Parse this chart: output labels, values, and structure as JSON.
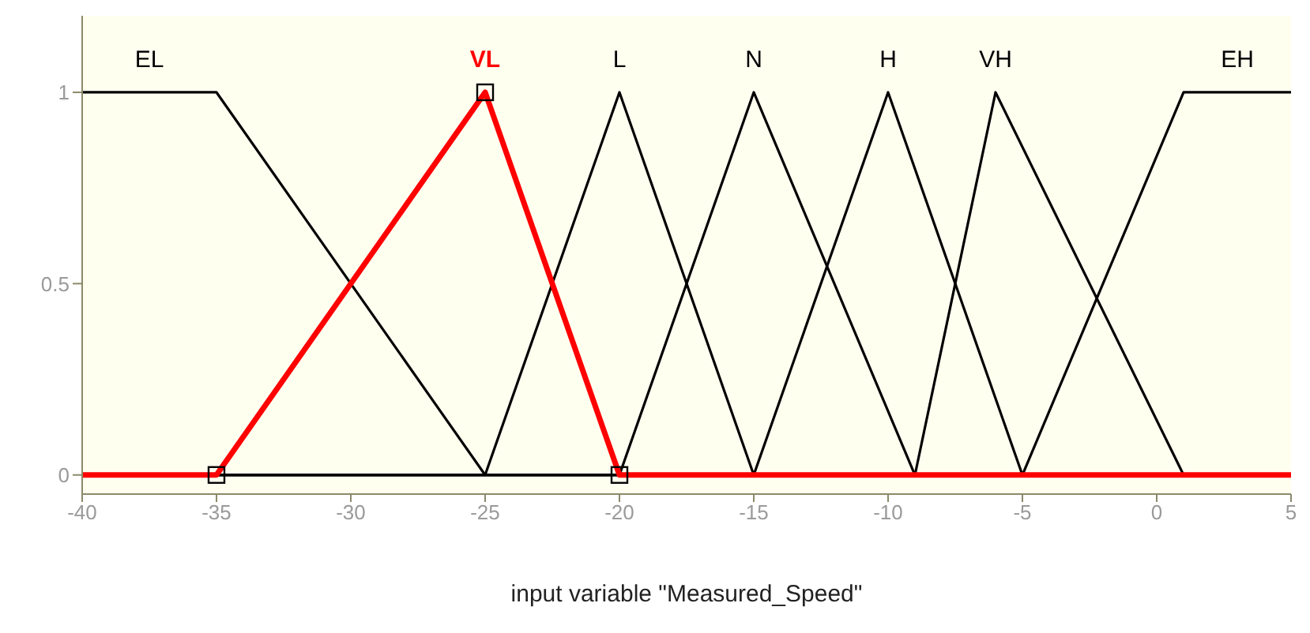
{
  "chart_data": {
    "type": "line",
    "xlabel": "input variable \"Measured_Speed\"",
    "xlim": [
      -40,
      5
    ],
    "xticks": [
      -40,
      -35,
      -30,
      -25,
      -20,
      -15,
      -10,
      -5,
      0,
      5
    ],
    "ylim": [
      -0.05,
      1.2
    ],
    "yticks": [
      0,
      0.5,
      1
    ],
    "grid": false,
    "marker": "none",
    "series": [
      {
        "name": "EL",
        "color": "#000000",
        "x": [
          -40,
          -35,
          -25,
          5
        ],
        "values": [
          1,
          1,
          0,
          0
        ]
      },
      {
        "name": "L",
        "color": "#000000",
        "x": [
          -40,
          -25,
          -20,
          -15,
          5
        ],
        "values": [
          0,
          0,
          1,
          0,
          0
        ]
      },
      {
        "name": "N",
        "color": "#000000",
        "x": [
          -40,
          -20,
          -15,
          -9,
          5
        ],
        "values": [
          0,
          0,
          1,
          0,
          0
        ]
      },
      {
        "name": "H",
        "color": "#000000",
        "x": [
          -40,
          -15,
          -10,
          -5,
          5
        ],
        "values": [
          0,
          0,
          1,
          0,
          0
        ]
      },
      {
        "name": "VH",
        "color": "#000000",
        "x": [
          -40,
          -9,
          -6,
          1,
          5
        ],
        "values": [
          0,
          0,
          1,
          0,
          0
        ]
      },
      {
        "name": "EH",
        "color": "#000000",
        "x": [
          -40,
          -5,
          1,
          5
        ],
        "values": [
          0,
          0,
          1,
          1
        ]
      },
      {
        "name": "VL",
        "color": "#ff0000",
        "x": [
          -40,
          -35,
          -25,
          -20,
          5
        ],
        "values": [
          0,
          0,
          1,
          0,
          0
        ]
      },
      {
        "type": "scatter",
        "marker": "square",
        "color": "#000000",
        "x": [
          -35,
          -25,
          -20
        ],
        "values": [
          0,
          1,
          0
        ]
      }
    ]
  }
}
